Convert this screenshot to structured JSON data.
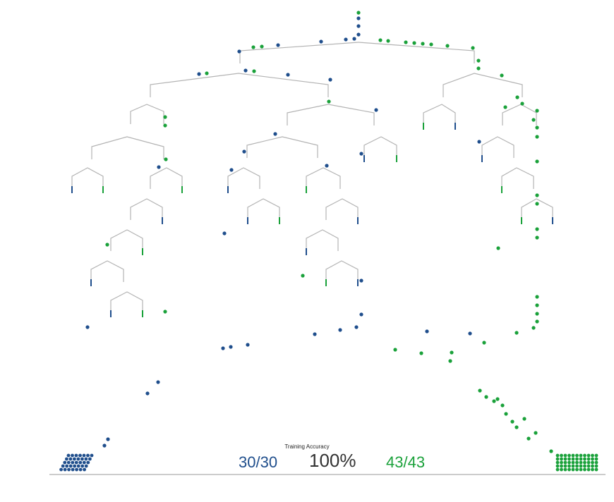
{
  "colors": {
    "blue": "#1f4e8c",
    "green": "#1aa13a",
    "branch": "#b3b3b3",
    "baseline": "#999999"
  },
  "stats": {
    "label": "Training Accuracy",
    "accuracy": "100%",
    "blue_correct": "30",
    "blue_total": "30",
    "green_correct": "43",
    "green_total": "43",
    "separator": "/"
  },
  "tree": {
    "description_hidden": true
  },
  "samples": {
    "blue_count": 30,
    "green_count": 43
  }
}
